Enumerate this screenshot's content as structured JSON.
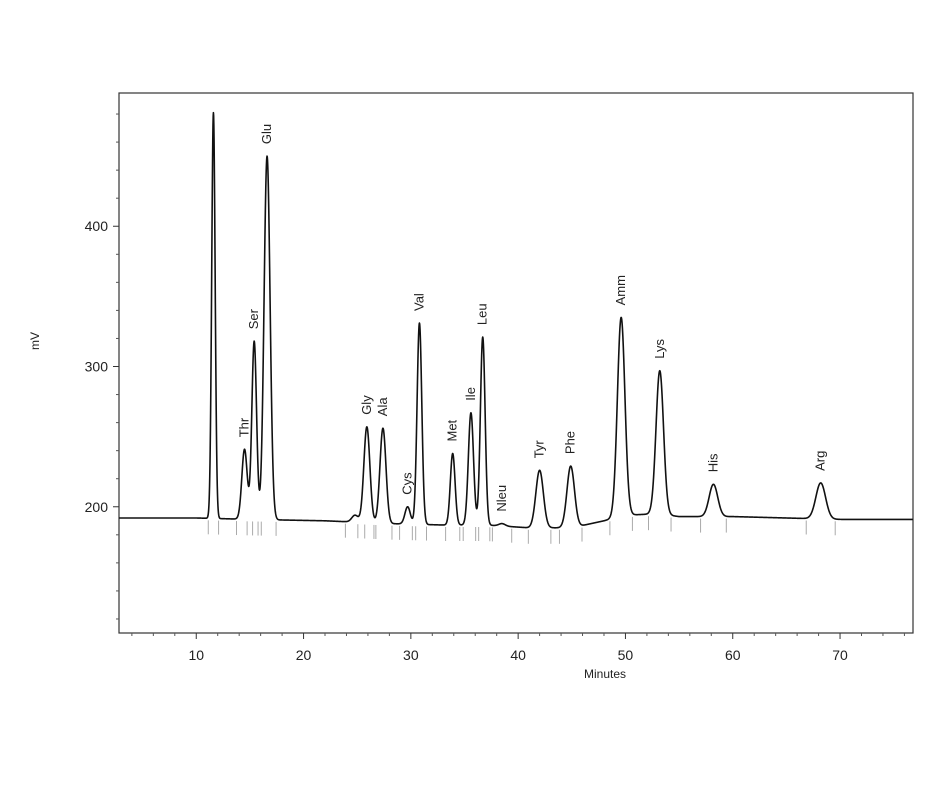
{
  "chart_data": {
    "type": "line",
    "title": "",
    "xlabel": "Minutes",
    "ylabel": "mV",
    "xlim": [
      2.8,
      76.8
    ],
    "ylim": [
      110,
      495
    ],
    "x_ticks": [
      10,
      20,
      30,
      40,
      50,
      60,
      70
    ],
    "y_ticks": [
      200,
      300,
      400
    ],
    "grid": false,
    "baseline": [
      [
        2.8,
        192
      ],
      [
        10,
        192
      ],
      [
        15,
        191
      ],
      [
        22,
        190
      ],
      [
        28,
        188
      ],
      [
        33,
        187
      ],
      [
        37,
        187
      ],
      [
        41,
        185
      ],
      [
        45,
        185
      ],
      [
        48,
        190
      ],
      [
        50,
        194
      ],
      [
        53,
        195
      ],
      [
        55,
        193
      ],
      [
        60,
        193
      ],
      [
        65,
        192
      ],
      [
        70,
        191
      ],
      [
        76.8,
        191
      ]
    ],
    "peaks": [
      {
        "rt": 11.6,
        "height": 481,
        "width": 0.16,
        "label": ""
      },
      {
        "rt": 14.5,
        "height": 241,
        "width": 0.25,
        "label": "Thr"
      },
      {
        "rt": 15.4,
        "height": 318,
        "width": 0.22,
        "label": "Ser"
      },
      {
        "rt": 16.6,
        "height": 450,
        "width": 0.28,
        "label": "Glu"
      },
      {
        "rt": 24.8,
        "height": 194,
        "width": 0.3,
        "label": ""
      },
      {
        "rt": 25.9,
        "height": 257,
        "width": 0.28,
        "label": "Gly"
      },
      {
        "rt": 27.4,
        "height": 256,
        "width": 0.28,
        "label": "Ala"
      },
      {
        "rt": 29.7,
        "height": 200,
        "width": 0.25,
        "label": "Cys"
      },
      {
        "rt": 30.8,
        "height": 331,
        "width": 0.22,
        "label": "Val"
      },
      {
        "rt": 33.9,
        "height": 238,
        "width": 0.22,
        "label": "Met"
      },
      {
        "rt": 35.6,
        "height": 267,
        "width": 0.24,
        "label": "Ile"
      },
      {
        "rt": 36.7,
        "height": 321,
        "width": 0.22,
        "label": "Leu"
      },
      {
        "rt": 38.5,
        "height": 188,
        "width": 0.3,
        "label": "Nleu"
      },
      {
        "rt": 42.0,
        "height": 226,
        "width": 0.35,
        "label": "Tyr"
      },
      {
        "rt": 44.9,
        "height": 229,
        "width": 0.35,
        "label": "Phe"
      },
      {
        "rt": 49.6,
        "height": 335,
        "width": 0.35,
        "label": "Amm"
      },
      {
        "rt": 53.2,
        "height": 297,
        "width": 0.35,
        "label": "Lys"
      },
      {
        "rt": 58.2,
        "height": 216,
        "width": 0.4,
        "label": "His"
      },
      {
        "rt": 68.2,
        "height": 217,
        "width": 0.45,
        "label": "Arg"
      }
    ]
  }
}
